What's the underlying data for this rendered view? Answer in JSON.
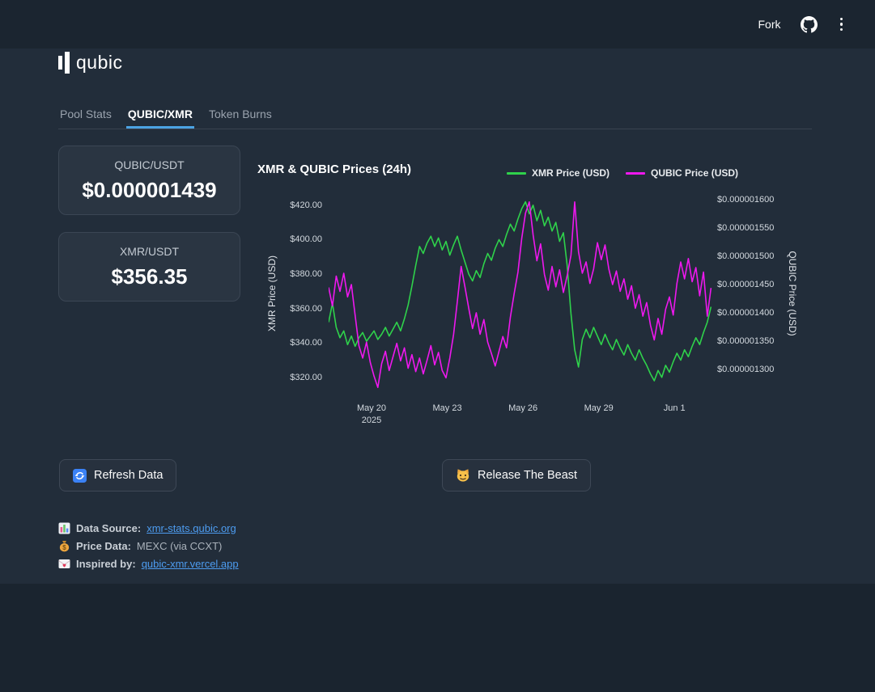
{
  "colors": {
    "accent": "#4ba3e3",
    "link": "#4d9cf0",
    "xmr_green": "#2fd24b",
    "qubic_magenta": "#ee18ee"
  },
  "header": {
    "fork_label": "Fork",
    "icons": [
      "github-icon",
      "menu-dots-icon"
    ]
  },
  "logo": {
    "text": "qubic",
    "icon": "qubic-logo-icon"
  },
  "tabs": [
    {
      "label": "Pool Stats",
      "active": false
    },
    {
      "label": "QUBIC/XMR",
      "active": true
    },
    {
      "label": "Token Burns",
      "active": false
    }
  ],
  "metrics": [
    {
      "label": "QUBIC/USDT",
      "value": "$0.000001439"
    },
    {
      "label": "XMR/USDT",
      "value": "$356.35"
    }
  ],
  "chart_data": {
    "type": "line",
    "title": "XMR & QUBIC Prices (24h)",
    "grid": false,
    "legend_position": "top-right",
    "x_unit": "days since 2025-05-18 00:00",
    "x_domain": [
      0.3,
      15.5
    ],
    "x_ticks": [
      {
        "v": 2,
        "label": "May 20",
        "sub": "2025"
      },
      {
        "v": 5,
        "label": "May 23",
        "sub": ""
      },
      {
        "v": 8,
        "label": "May 26",
        "sub": ""
      },
      {
        "v": 11,
        "label": "May 29",
        "sub": ""
      },
      {
        "v": 14,
        "label": "Jun 1",
        "sub": ""
      }
    ],
    "left_axis": {
      "label": "XMR Price (USD)",
      "range": [
        310.5,
        426.5
      ],
      "ticks": [
        {
          "v": 420,
          "label": "$420.00"
        },
        {
          "v": 400,
          "label": "$400.00"
        },
        {
          "v": 380,
          "label": "$380.00"
        },
        {
          "v": 360,
          "label": "$360.00"
        },
        {
          "v": 340,
          "label": "$340.00"
        },
        {
          "v": 320,
          "label": "$320.00"
        }
      ]
    },
    "right_axis": {
      "label": "QUBIC Price (USD)",
      "unit": "USD x 1e-9",
      "range": [
        1257,
        1610
      ],
      "ticks": [
        {
          "v": 1600,
          "label": "$0.000001600"
        },
        {
          "v": 1550,
          "label": "$0.000001550"
        },
        {
          "v": 1500,
          "label": "$0.000001500"
        },
        {
          "v": 1450,
          "label": "$0.000001450"
        },
        {
          "v": 1400,
          "label": "$0.000001400"
        },
        {
          "v": 1350,
          "label": "$0.000001350"
        },
        {
          "v": 1300,
          "label": "$0.000001300"
        }
      ]
    },
    "x": [
      0.3,
      0.45,
      0.6,
      0.75,
      0.9,
      1.05,
      1.2,
      1.35,
      1.5,
      1.65,
      1.8,
      1.95,
      2.1,
      2.25,
      2.4,
      2.55,
      2.7,
      2.85,
      3.0,
      3.15,
      3.3,
      3.45,
      3.6,
      3.75,
      3.9,
      4.05,
      4.2,
      4.35,
      4.5,
      4.65,
      4.8,
      4.95,
      5.1,
      5.25,
      5.4,
      5.55,
      5.7,
      5.85,
      6.0,
      6.15,
      6.3,
      6.45,
      6.6,
      6.75,
      6.9,
      7.05,
      7.2,
      7.35,
      7.5,
      7.65,
      7.8,
      7.95,
      8.1,
      8.25,
      8.4,
      8.55,
      8.7,
      8.85,
      9.0,
      9.15,
      9.3,
      9.45,
      9.6,
      9.75,
      9.9,
      10.05,
      10.2,
      10.35,
      10.5,
      10.65,
      10.8,
      10.95,
      11.1,
      11.25,
      11.4,
      11.55,
      11.7,
      11.85,
      12.0,
      12.15,
      12.3,
      12.45,
      12.6,
      12.75,
      12.9,
      13.05,
      13.2,
      13.35,
      13.5,
      13.65,
      13.8,
      13.95,
      14.1,
      14.25,
      14.4,
      14.55,
      14.7,
      14.85,
      15.0,
      15.15,
      15.3,
      15.45
    ],
    "series": [
      {
        "name": "XMR Price (USD)",
        "color": "#2fd24b",
        "axis": "left",
        "values": [
          352,
          363,
          349,
          343,
          347,
          339,
          344,
          338,
          343,
          346,
          341,
          344,
          347,
          342,
          345,
          349,
          344,
          348,
          352,
          347,
          354,
          362,
          373,
          385,
          396,
          392,
          398,
          402,
          396,
          401,
          394,
          399,
          391,
          397,
          402,
          394,
          387,
          380,
          376,
          382,
          378,
          386,
          392,
          388,
          395,
          400,
          396,
          403,
          409,
          405,
          412,
          418,
          422,
          415,
          420,
          411,
          417,
          408,
          413,
          405,
          410,
          399,
          404,
          385,
          357,
          336,
          326,
          342,
          348,
          343,
          349,
          344,
          339,
          345,
          340,
          336,
          342,
          337,
          333,
          339,
          334,
          330,
          336,
          331,
          327,
          322,
          318,
          324,
          320,
          327,
          323,
          329,
          334,
          330,
          336,
          332,
          338,
          343,
          339,
          346,
          352,
          361
        ]
      },
      {
        "name": "QUBIC Price (USD)",
        "color": "#ee18ee",
        "axis": "right",
        "values": [
          1445,
          1412,
          1465,
          1438,
          1470,
          1428,
          1450,
          1396,
          1342,
          1320,
          1348,
          1312,
          1288,
          1268,
          1310,
          1332,
          1298,
          1322,
          1346,
          1315,
          1338,
          1302,
          1326,
          1296,
          1320,
          1292,
          1316,
          1342,
          1308,
          1330,
          1298,
          1285,
          1320,
          1362,
          1420,
          1482,
          1446,
          1408,
          1372,
          1400,
          1362,
          1388,
          1348,
          1328,
          1306,
          1332,
          1358,
          1338,
          1392,
          1434,
          1472,
          1532,
          1576,
          1596,
          1538,
          1492,
          1522,
          1468,
          1440,
          1482,
          1446,
          1476,
          1436,
          1466,
          1502,
          1596,
          1508,
          1470,
          1490,
          1452,
          1478,
          1524,
          1494,
          1520,
          1478,
          1450,
          1474,
          1438,
          1460,
          1424,
          1448,
          1408,
          1432,
          1394,
          1418,
          1378,
          1352,
          1390,
          1362,
          1406,
          1428,
          1396,
          1452,
          1490,
          1460,
          1496,
          1455,
          1480,
          1430,
          1472,
          1394,
          1444
        ]
      }
    ]
  },
  "buttons": [
    {
      "icon": "refresh-icon",
      "label": "Refresh Data"
    },
    {
      "icon": "cat-icon",
      "label": "Release The Beast"
    }
  ],
  "footer": [
    {
      "icon": "bar-chart-icon",
      "label": "Data Source:",
      "text": "xmr-stats.qubic.org",
      "link": true
    },
    {
      "icon": "money-bag-icon",
      "label": "Price Data:",
      "text": "MEXC (via CCXT)",
      "link": false
    },
    {
      "icon": "love-letter-icon",
      "label": "Inspired by:",
      "text": "qubic-xmr.vercel.app",
      "link": true
    }
  ]
}
